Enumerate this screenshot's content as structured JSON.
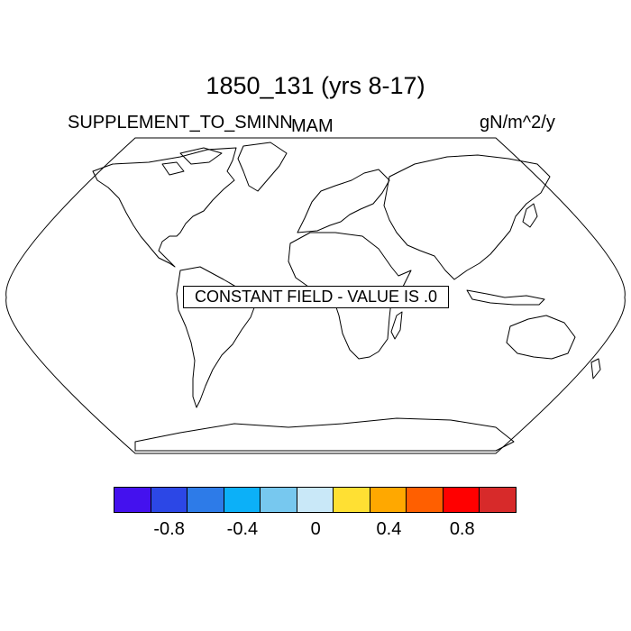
{
  "title": "1850_131 (yrs 8-17)",
  "left_label": "SUPPLEMENT_TO_SMINN",
  "center_label": "MAM",
  "right_label": "gN/m^2/y",
  "constant_field_message": "CONSTANT FIELD - VALUE IS .0",
  "map": {
    "projection": "Robinson",
    "features": "coastlines"
  },
  "colorbar": {
    "colors": [
      "#4411ee",
      "#2c47e6",
      "#2d7be8",
      "#0cb0f8",
      "#77c8ef",
      "#c9e8f8",
      "#ffe033",
      "#ffa800",
      "#ff5f00",
      "#ff0000",
      "#d72a2a"
    ],
    "tick_labels": [
      "-0.8",
      "-0.4",
      "0",
      "0.4",
      "0.8"
    ]
  }
}
